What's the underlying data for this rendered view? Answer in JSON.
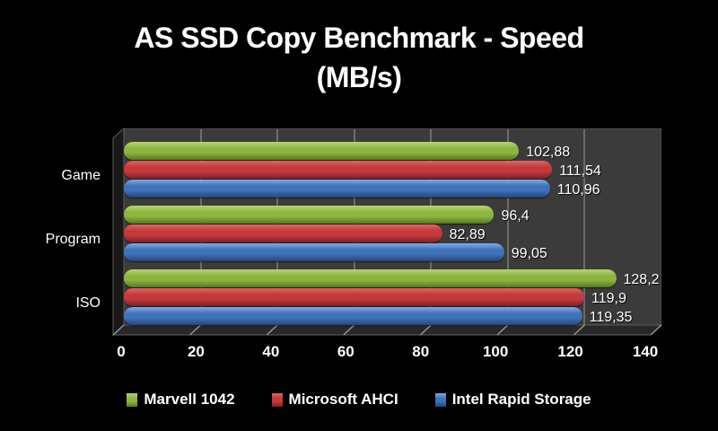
{
  "title": {
    "line1": "AS SSD Copy Benchmark - Speed",
    "line2": "(MB/s)"
  },
  "chart_data": {
    "type": "bar",
    "orientation": "horizontal",
    "style": "3d-dark-excel",
    "title": "AS SSD Copy Benchmark - Speed (MB/s)",
    "categories": [
      "Game",
      "Program",
      "ISO"
    ],
    "series": [
      {
        "name": "Marvell 1042",
        "values": [
          102.88,
          96.4,
          128.2
        ],
        "value_labels": [
          "102,88",
          "96,4",
          "128,2"
        ],
        "color": "#8cb540",
        "color_stops": [
          "#b7d16d",
          "#8cb540",
          "#55791d"
        ]
      },
      {
        "name": "Microsoft AHCI",
        "values": [
          111.54,
          82.89,
          119.9
        ],
        "value_labels": [
          "111,54",
          "82,89",
          "119,9"
        ],
        "color": "#c33a3c",
        "color_stops": [
          "#df625f",
          "#c33a3c",
          "#821e21"
        ]
      },
      {
        "name": "Intel Rapid Storage",
        "values": [
          110.96,
          99.05,
          119.35
        ],
        "value_labels": [
          "110,96",
          "99,05",
          "119,35"
        ],
        "color": "#3f72bb",
        "color_stops": [
          "#7ba7e0",
          "#3f72bb",
          "#254678"
        ]
      }
    ],
    "xlim": [
      0,
      140
    ],
    "xticks": [
      "0",
      "20",
      "40",
      "60",
      "80",
      "100",
      "120",
      "140"
    ],
    "grid": true,
    "legend_position": "bottom",
    "xlabel": "",
    "ylabel": ""
  },
  "colors": {
    "background": "#000000",
    "plot_background": "#3b3b3b",
    "gridline": "#6c6c6c",
    "wall": "#191919",
    "floor": "#282828",
    "floor_tick": "#999999",
    "edge": "#5c5c5c",
    "text": "#ffffff"
  }
}
